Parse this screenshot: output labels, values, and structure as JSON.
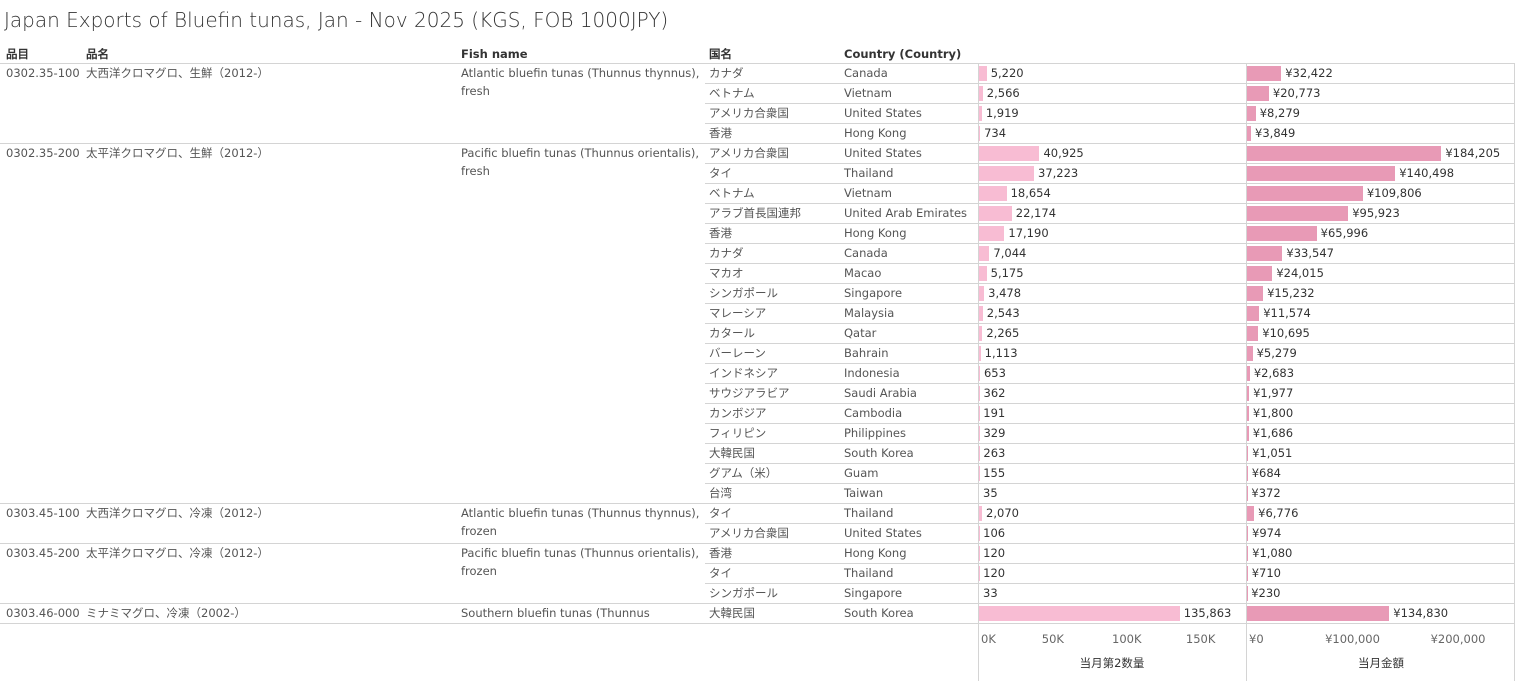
{
  "title": "Japan Exports of Bluefin tunas, Jan - Nov 2025 (KGS, FOB 1000JPY)",
  "columns": [
    "品目",
    "品名",
    "Fish name",
    "国名",
    "Country (Country)"
  ],
  "groups": [
    {
      "code": "0302.35-100",
      "name": "大西洋クロマグロ、生鮮（2012-）",
      "fish_name": "Atlantic bluefin tunas (Thunnus thynnus), fresh",
      "rows": [
        {
          "country_ja": "カナダ",
          "country": "Canada",
          "qty": 5220,
          "qty_label": "5,220",
          "amount": 32422,
          "amount_label": "¥32,422"
        },
        {
          "country_ja": "ベトナム",
          "country": "Vietnam",
          "qty": 2566,
          "qty_label": "2,566",
          "amount": 20773,
          "amount_label": "¥20,773"
        },
        {
          "country_ja": "アメリカ合衆国",
          "country": "United States",
          "qty": 1919,
          "qty_label": "1,919",
          "amount": 8279,
          "amount_label": "¥8,279"
        },
        {
          "country_ja": "香港",
          "country": "Hong Kong",
          "qty": 734,
          "qty_label": "734",
          "amount": 3849,
          "amount_label": "¥3,849"
        }
      ]
    },
    {
      "code": "0302.35-200",
      "name": "太平洋クロマグロ、生鮮（2012-）",
      "fish_name": "Pacific bluefin tunas (Thunnus orientalis), fresh",
      "rows": [
        {
          "country_ja": "アメリカ合衆国",
          "country": "United States",
          "qty": 40925,
          "qty_label": "40,925",
          "amount": 184205,
          "amount_label": "¥184,205"
        },
        {
          "country_ja": "タイ",
          "country": "Thailand",
          "qty": 37223,
          "qty_label": "37,223",
          "amount": 140498,
          "amount_label": "¥140,498"
        },
        {
          "country_ja": "ベトナム",
          "country": "Vietnam",
          "qty": 18654,
          "qty_label": "18,654",
          "amount": 109806,
          "amount_label": "¥109,806"
        },
        {
          "country_ja": "アラブ首長国連邦",
          "country": "United Arab Emirates",
          "qty": 22174,
          "qty_label": "22,174",
          "amount": 95923,
          "amount_label": "¥95,923"
        },
        {
          "country_ja": "香港",
          "country": "Hong Kong",
          "qty": 17190,
          "qty_label": "17,190",
          "amount": 65996,
          "amount_label": "¥65,996"
        },
        {
          "country_ja": "カナダ",
          "country": "Canada",
          "qty": 7044,
          "qty_label": "7,044",
          "amount": 33547,
          "amount_label": "¥33,547"
        },
        {
          "country_ja": "マカオ",
          "country": "Macao",
          "qty": 5175,
          "qty_label": "5,175",
          "amount": 24015,
          "amount_label": "¥24,015"
        },
        {
          "country_ja": "シンガポール",
          "country": "Singapore",
          "qty": 3478,
          "qty_label": "3,478",
          "amount": 15232,
          "amount_label": "¥15,232"
        },
        {
          "country_ja": "マレーシア",
          "country": "Malaysia",
          "qty": 2543,
          "qty_label": "2,543",
          "amount": 11574,
          "amount_label": "¥11,574"
        },
        {
          "country_ja": "カタール",
          "country": "Qatar",
          "qty": 2265,
          "qty_label": "2,265",
          "amount": 10695,
          "amount_label": "¥10,695"
        },
        {
          "country_ja": "バーレーン",
          "country": "Bahrain",
          "qty": 1113,
          "qty_label": "1,113",
          "amount": 5279,
          "amount_label": "¥5,279"
        },
        {
          "country_ja": "インドネシア",
          "country": "Indonesia",
          "qty": 653,
          "qty_label": "653",
          "amount": 2683,
          "amount_label": "¥2,683"
        },
        {
          "country_ja": "サウジアラビア",
          "country": "Saudi Arabia",
          "qty": 362,
          "qty_label": "362",
          "amount": 1977,
          "amount_label": "¥1,977"
        },
        {
          "country_ja": "カンボジア",
          "country": "Cambodia",
          "qty": 191,
          "qty_label": "191",
          "amount": 1800,
          "amount_label": "¥1,800"
        },
        {
          "country_ja": "フィリピン",
          "country": "Philippines",
          "qty": 329,
          "qty_label": "329",
          "amount": 1686,
          "amount_label": "¥1,686"
        },
        {
          "country_ja": "大韓民国",
          "country": "South Korea",
          "qty": 263,
          "qty_label": "263",
          "amount": 1051,
          "amount_label": "¥1,051"
        },
        {
          "country_ja": "グアム（米）",
          "country": "Guam",
          "qty": 155,
          "qty_label": "155",
          "amount": 684,
          "amount_label": "¥684"
        },
        {
          "country_ja": "台湾",
          "country": "Taiwan",
          "qty": 35,
          "qty_label": "35",
          "amount": 372,
          "amount_label": "¥372"
        }
      ]
    },
    {
      "code": "0303.45-100",
      "name": "大西洋クロマグロ、冷凍（2012-）",
      "fish_name": "Atlantic bluefin tunas (Thunnus thynnus), frozen",
      "rows": [
        {
          "country_ja": "タイ",
          "country": "Thailand",
          "qty": 2070,
          "qty_label": "2,070",
          "amount": 6776,
          "amount_label": "¥6,776"
        },
        {
          "country_ja": "アメリカ合衆国",
          "country": "United States",
          "qty": 106,
          "qty_label": "106",
          "amount": 974,
          "amount_label": "¥974"
        }
      ]
    },
    {
      "code": "0303.45-200",
      "name": "太平洋クロマグロ、冷凍（2012-）",
      "fish_name": "Pacific bluefin tunas (Thunnus orientalis), frozen",
      "rows": [
        {
          "country_ja": "香港",
          "country": "Hong Kong",
          "qty": 120,
          "qty_label": "120",
          "amount": 1080,
          "amount_label": "¥1,080"
        },
        {
          "country_ja": "タイ",
          "country": "Thailand",
          "qty": 120,
          "qty_label": "120",
          "amount": 710,
          "amount_label": "¥710"
        },
        {
          "country_ja": "シンガポール",
          "country": "Singapore",
          "qty": 33,
          "qty_label": "33",
          "amount": 230,
          "amount_label": "¥230"
        }
      ]
    },
    {
      "code": "0303.46-000",
      "name": "ミナミマグロ、冷凍（2002-）",
      "fish_name": "Southern bluefin tunas (Thunnus maccoyi..",
      "rows": [
        {
          "country_ja": "大韓民国",
          "country": "South Korea",
          "qty": 135863,
          "qty_label": "135,863",
          "amount": 134830,
          "amount_label": "¥134,830"
        }
      ]
    }
  ],
  "qty_axis": {
    "title": "当月第2数量",
    "color": "#f8bcd3",
    "xlim": [
      0,
      180000
    ],
    "xticks": [
      {
        "value": 0,
        "label": "0K"
      },
      {
        "value": 50000,
        "label": "50K"
      },
      {
        "value": 100000,
        "label": "100K"
      },
      {
        "value": 150000,
        "label": "150K"
      }
    ]
  },
  "amount_axis": {
    "title": "当月金額",
    "color": "#e89ab6",
    "xlim": [
      0,
      254000
    ],
    "xticks": [
      {
        "value": 0,
        "label": "¥0"
      },
      {
        "value": 100000,
        "label": "¥100,000"
      },
      {
        "value": 200000,
        "label": "¥200,000"
      }
    ]
  }
}
